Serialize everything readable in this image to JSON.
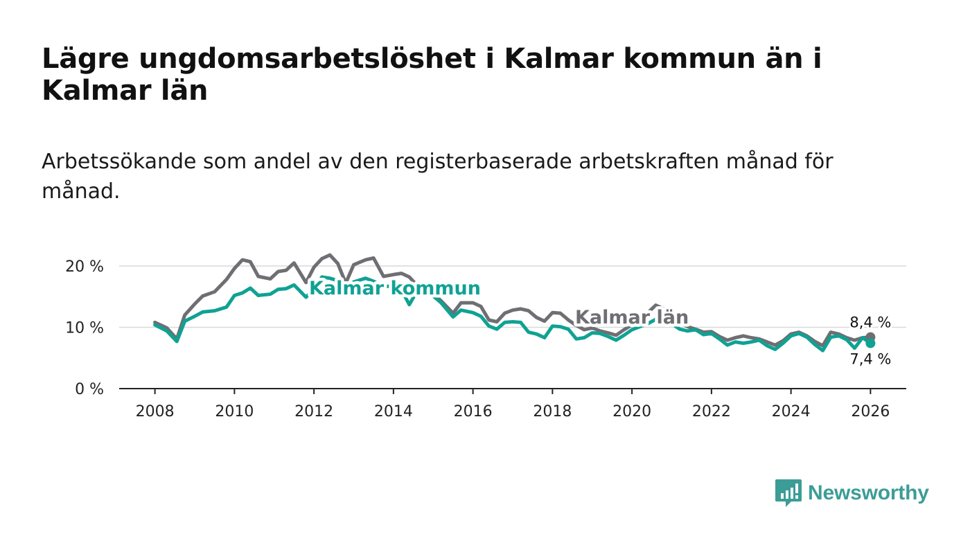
{
  "title": "Lägre ungdomsarbetslöshet i Kalmar kommun än i Kalmar län",
  "subtitle": "Arbetssökande som andel av den registerbaserade arbetskraften månad för månad.",
  "brand": {
    "name": "Newsworthy",
    "color": "#3c9d96"
  },
  "chart_data": {
    "type": "line",
    "y_unit": " %",
    "ylim": [
      0,
      20
    ],
    "y_ticks": [
      0,
      10,
      20
    ],
    "y_tick_labels": [
      "0 %",
      "10 %",
      "20 %"
    ],
    "xlim": [
      2007.1,
      2026.9
    ],
    "x_ticks": [
      2008,
      2010,
      2012,
      2014,
      2016,
      2018,
      2020,
      2022,
      2024,
      2026
    ],
    "x_tick_labels": [
      "2008",
      "2010",
      "2012",
      "2014",
      "2016",
      "2018",
      "2020",
      "2022",
      "2024",
      "2026"
    ],
    "grid": true,
    "series": [
      {
        "name": "Kalmar län",
        "color": "#6e6e73",
        "label": "Kalmar län",
        "end_label": "8,4 %",
        "points": [
          [
            2008.0,
            10.8
          ],
          [
            2008.3,
            9.9
          ],
          [
            2008.55,
            8.1
          ],
          [
            2008.75,
            12.0
          ],
          [
            2009.0,
            13.8
          ],
          [
            2009.2,
            15.1
          ],
          [
            2009.5,
            15.8
          ],
          [
            2009.8,
            17.8
          ],
          [
            2010.0,
            19.6
          ],
          [
            2010.2,
            21.0
          ],
          [
            2010.4,
            20.7
          ],
          [
            2010.6,
            18.3
          ],
          [
            2010.9,
            17.9
          ],
          [
            2011.1,
            19.1
          ],
          [
            2011.3,
            19.3
          ],
          [
            2011.5,
            20.5
          ],
          [
            2011.8,
            17.3
          ],
          [
            2012.0,
            19.8
          ],
          [
            2012.2,
            21.2
          ],
          [
            2012.4,
            21.8
          ],
          [
            2012.6,
            20.4
          ],
          [
            2012.8,
            17.2
          ],
          [
            2013.0,
            20.2
          ],
          [
            2013.3,
            21.0
          ],
          [
            2013.5,
            21.3
          ],
          [
            2013.75,
            18.3
          ],
          [
            2014.0,
            18.6
          ],
          [
            2014.2,
            18.8
          ],
          [
            2014.4,
            18.2
          ],
          [
            2014.6,
            16.8
          ],
          [
            2014.8,
            15.7
          ],
          [
            2015.0,
            15.5
          ],
          [
            2015.2,
            14.3
          ],
          [
            2015.5,
            12.3
          ],
          [
            2015.7,
            14.0
          ],
          [
            2016.0,
            14.0
          ],
          [
            2016.2,
            13.4
          ],
          [
            2016.4,
            11.2
          ],
          [
            2016.6,
            10.9
          ],
          [
            2016.8,
            12.3
          ],
          [
            2017.0,
            12.8
          ],
          [
            2017.2,
            13.0
          ],
          [
            2017.4,
            12.7
          ],
          [
            2017.6,
            11.6
          ],
          [
            2017.8,
            11.0
          ],
          [
            2018.0,
            12.4
          ],
          [
            2018.2,
            12.3
          ],
          [
            2018.4,
            11.2
          ],
          [
            2018.6,
            10.3
          ],
          [
            2018.8,
            9.6
          ],
          [
            2019.0,
            9.9
          ],
          [
            2019.2,
            9.4
          ],
          [
            2019.4,
            9.1
          ],
          [
            2019.6,
            8.7
          ],
          [
            2019.8,
            9.6
          ],
          [
            2020.0,
            10.4
          ],
          [
            2020.2,
            11.1
          ],
          [
            2020.4,
            12.4
          ],
          [
            2020.6,
            13.6
          ],
          [
            2020.8,
            13.0
          ],
          [
            2021.0,
            11.9
          ],
          [
            2021.2,
            10.7
          ],
          [
            2021.4,
            10.1
          ],
          [
            2021.6,
            9.7
          ],
          [
            2021.8,
            9.2
          ],
          [
            2022.0,
            9.3
          ],
          [
            2022.2,
            8.5
          ],
          [
            2022.4,
            7.9
          ],
          [
            2022.6,
            8.3
          ],
          [
            2022.8,
            8.6
          ],
          [
            2023.0,
            8.3
          ],
          [
            2023.2,
            8.1
          ],
          [
            2023.4,
            7.6
          ],
          [
            2023.6,
            7.1
          ],
          [
            2023.8,
            7.8
          ],
          [
            2024.0,
            8.9
          ],
          [
            2024.2,
            9.2
          ],
          [
            2024.4,
            8.6
          ],
          [
            2024.6,
            7.7
          ],
          [
            2024.8,
            7.0
          ],
          [
            2025.0,
            9.2
          ],
          [
            2025.2,
            8.9
          ],
          [
            2025.4,
            8.3
          ],
          [
            2025.6,
            7.9
          ],
          [
            2025.8,
            8.3
          ],
          [
            2026.0,
            8.4
          ]
        ]
      },
      {
        "name": "Kalmar kommun",
        "color": "#0fa293",
        "label": "Kalmar kommun",
        "end_label": "7,4 %",
        "points": [
          [
            2008.0,
            10.4
          ],
          [
            2008.3,
            9.4
          ],
          [
            2008.55,
            7.7
          ],
          [
            2008.75,
            11.0
          ],
          [
            2009.0,
            11.8
          ],
          [
            2009.2,
            12.5
          ],
          [
            2009.5,
            12.7
          ],
          [
            2009.8,
            13.3
          ],
          [
            2010.0,
            15.2
          ],
          [
            2010.2,
            15.6
          ],
          [
            2010.4,
            16.4
          ],
          [
            2010.6,
            15.2
          ],
          [
            2010.9,
            15.4
          ],
          [
            2011.1,
            16.2
          ],
          [
            2011.3,
            16.3
          ],
          [
            2011.5,
            16.9
          ],
          [
            2011.8,
            14.9
          ],
          [
            2012.0,
            16.3
          ],
          [
            2012.2,
            18.2
          ],
          [
            2012.4,
            18.0
          ],
          [
            2012.6,
            17.6
          ],
          [
            2012.8,
            16.4
          ],
          [
            2013.0,
            17.4
          ],
          [
            2013.3,
            18.0
          ],
          [
            2013.5,
            17.5
          ],
          [
            2013.75,
            16.6
          ],
          [
            2014.0,
            16.8
          ],
          [
            2014.2,
            16.1
          ],
          [
            2014.4,
            13.7
          ],
          [
            2014.6,
            16.0
          ],
          [
            2014.8,
            15.4
          ],
          [
            2015.0,
            15.1
          ],
          [
            2015.2,
            14.0
          ],
          [
            2015.5,
            11.7
          ],
          [
            2015.7,
            12.8
          ],
          [
            2016.0,
            12.4
          ],
          [
            2016.2,
            11.8
          ],
          [
            2016.4,
            10.2
          ],
          [
            2016.6,
            9.7
          ],
          [
            2016.8,
            10.8
          ],
          [
            2017.0,
            10.9
          ],
          [
            2017.2,
            10.8
          ],
          [
            2017.4,
            9.2
          ],
          [
            2017.6,
            8.9
          ],
          [
            2017.8,
            8.3
          ],
          [
            2018.0,
            10.2
          ],
          [
            2018.2,
            10.1
          ],
          [
            2018.4,
            9.7
          ],
          [
            2018.6,
            8.1
          ],
          [
            2018.8,
            8.3
          ],
          [
            2019.0,
            9.1
          ],
          [
            2019.2,
            9.0
          ],
          [
            2019.4,
            8.5
          ],
          [
            2019.6,
            7.9
          ],
          [
            2019.8,
            8.7
          ],
          [
            2020.0,
            9.6
          ],
          [
            2020.2,
            10.1
          ],
          [
            2020.4,
            10.6
          ],
          [
            2020.6,
            11.3
          ],
          [
            2020.8,
            10.5
          ],
          [
            2021.0,
            10.6
          ],
          [
            2021.2,
            9.7
          ],
          [
            2021.4,
            9.4
          ],
          [
            2021.6,
            9.6
          ],
          [
            2021.8,
            8.8
          ],
          [
            2022.0,
            9.0
          ],
          [
            2022.2,
            8.1
          ],
          [
            2022.4,
            7.1
          ],
          [
            2022.6,
            7.6
          ],
          [
            2022.8,
            7.4
          ],
          [
            2023.0,
            7.6
          ],
          [
            2023.2,
            7.9
          ],
          [
            2023.4,
            7.0
          ],
          [
            2023.6,
            6.4
          ],
          [
            2023.8,
            7.4
          ],
          [
            2024.0,
            8.6
          ],
          [
            2024.2,
            9.0
          ],
          [
            2024.4,
            8.4
          ],
          [
            2024.6,
            7.2
          ],
          [
            2024.8,
            6.2
          ],
          [
            2025.0,
            8.4
          ],
          [
            2025.2,
            8.6
          ],
          [
            2025.4,
            8.0
          ],
          [
            2025.6,
            6.6
          ],
          [
            2025.8,
            8.3
          ],
          [
            2026.0,
            7.4
          ]
        ]
      }
    ]
  }
}
